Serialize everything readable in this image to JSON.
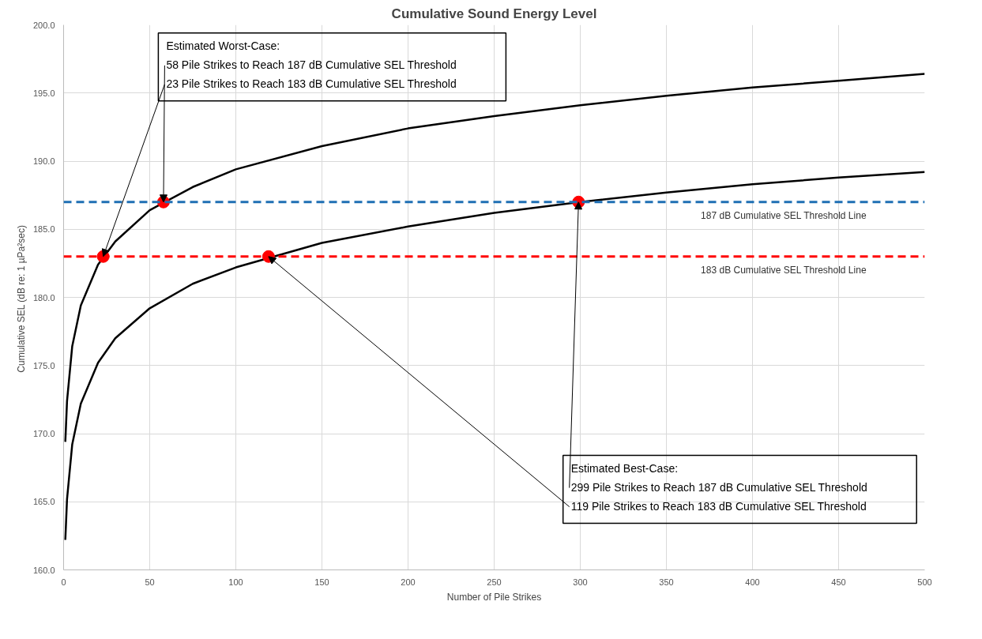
{
  "chart_data": {
    "type": "line",
    "title": "Cumulative Sound Energy Level",
    "xlabel": "Number of Pile Strikes",
    "ylabel": "Cumulative SEL  (dB re: 1 µPa²sec)",
    "xlim": [
      0,
      500
    ],
    "xticks": [
      0,
      50,
      100,
      150,
      200,
      250,
      300,
      350,
      400,
      450,
      500
    ],
    "ylim": [
      160,
      200
    ],
    "yticks": [
      {
        "value": 160,
        "label": "160.0"
      },
      {
        "value": 165,
        "label": "165.0"
      },
      {
        "value": 170,
        "label": "170.0"
      },
      {
        "value": 175,
        "label": "175.0"
      },
      {
        "value": 180,
        "label": "180.0"
      },
      {
        "value": 185,
        "label": "185.0"
      },
      {
        "value": 190,
        "label": "190.0"
      },
      {
        "value": 195,
        "label": "195.0"
      },
      {
        "value": 200,
        "label": "200.0"
      }
    ],
    "grid": true,
    "marker": "none",
    "line_style": "solid",
    "series": [
      {
        "color": "#000000",
        "x": [
          1,
          2,
          5,
          10,
          20,
          30,
          50,
          75,
          100,
          150,
          200,
          250,
          300,
          350,
          400,
          450,
          500
        ],
        "values": [
          169.4,
          172.4,
          176.4,
          179.4,
          182.4,
          184.1,
          186.4,
          188.1,
          189.4,
          191.1,
          192.4,
          193.3,
          194.1,
          194.8,
          195.4,
          195.9,
          196.4
        ]
      },
      {
        "color": "#000000",
        "x": [
          1,
          2,
          5,
          10,
          20,
          30,
          50,
          75,
          100,
          150,
          200,
          250,
          300,
          350,
          400,
          450,
          500
        ],
        "values": [
          162.2,
          165.2,
          169.2,
          172.2,
          175.2,
          177.0,
          179.2,
          181.0,
          182.2,
          184.0,
          185.2,
          186.2,
          187.0,
          187.7,
          188.3,
          188.8,
          189.2
        ]
      },
      {
        "type": "scatter",
        "marker": "circle",
        "color": "#ff0000",
        "x": [
          23,
          58,
          119,
          299
        ],
        "values": [
          183,
          187,
          183,
          187
        ]
      }
    ],
    "ref_lines": [
      {
        "axis": "y",
        "value": 187,
        "label": "187 dB Cumulative SEL Threshold Line",
        "color": "#1f6fb4",
        "line_style": "dashed"
      },
      {
        "axis": "y",
        "value": 183,
        "label": "183 dB Cumulative SEL Threshold Line",
        "color": "#ff0000",
        "line_style": "dashed"
      }
    ],
    "annotations": [
      "Estimated Worst-Case:",
      {
        "text": "58 Pile Strikes to Reach 187 dB Cumulative SEL Threshold",
        "x": 58,
        "y": 187
      },
      {
        "text": "23 Pile Strikes to Reach 183 dB Cumulative SEL Threshold",
        "x": 23,
        "y": 183
      },
      "Estimated Best-Case:",
      {
        "text": "299 Pile Strikes to Reach 187 dB Cumulative SEL Threshold",
        "x": 299,
        "y": 187
      },
      {
        "text": "119 Pile Strikes to Reach 183 dB Cumulative SEL Threshold",
        "x": 119,
        "y": 183
      }
    ]
  }
}
